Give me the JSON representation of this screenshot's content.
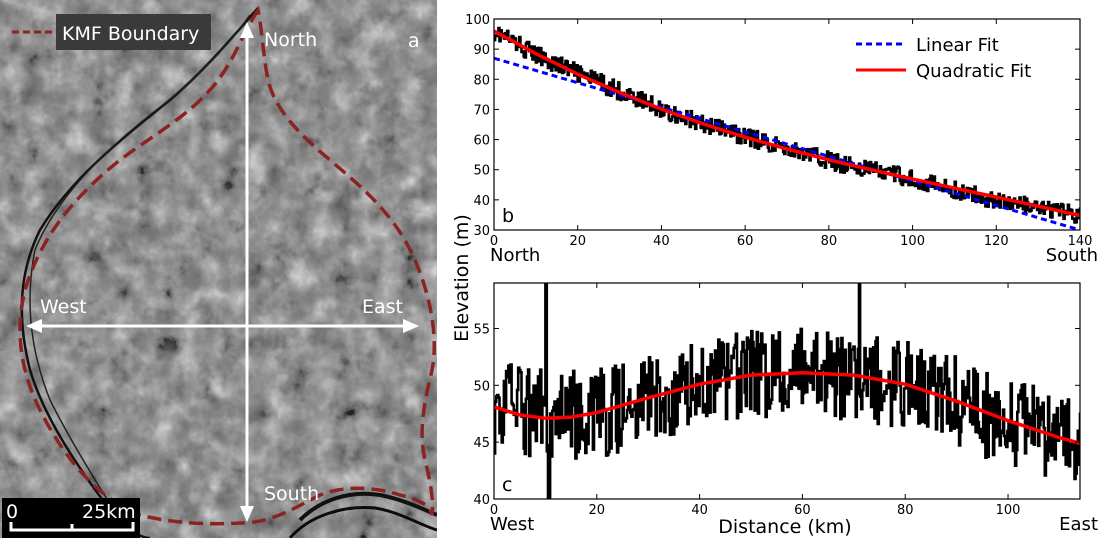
{
  "map": {
    "panel_label": "a",
    "legend_label": "KMF Boundary",
    "north_label": "North",
    "south_label": "South",
    "west_label": "West",
    "east_label": "East",
    "scale_start": "0",
    "scale_end": "25km",
    "colors": {
      "boundary": "#8b2323",
      "arrows": "#ffffff"
    }
  },
  "chart_data": [
    {
      "type": "line",
      "panel_label": "b",
      "xlim": [
        0,
        140
      ],
      "ylim": [
        30,
        100
      ],
      "xticks": [
        0,
        20,
        40,
        60,
        80,
        100,
        120,
        140
      ],
      "yticks": [
        30,
        40,
        50,
        60,
        70,
        80,
        90,
        100
      ],
      "x_start_label": "North",
      "x_end_label": "South",
      "legend_placement": "top-right",
      "series": [
        {
          "name": "Linear Fit",
          "color": "#0000ff",
          "style": "dashed",
          "x": [
            0,
            140
          ],
          "y": [
            87,
            30
          ]
        },
        {
          "name": "Quadratic Fit",
          "color": "#ff0000",
          "style": "solid",
          "x": [
            0,
            10,
            20,
            30,
            40,
            50,
            60,
            70,
            80,
            90,
            100,
            110,
            120,
            130,
            140
          ],
          "y": [
            96,
            88.5,
            81.7,
            75.6,
            70.1,
            65.2,
            60.8,
            56.9,
            53.3,
            50.0,
            46.9,
            43.9,
            40.9,
            37.9,
            34.8
          ]
        },
        {
          "name": "Elevation profile",
          "color": "#000000",
          "style": "noisy",
          "x": [
            0,
            10,
            20,
            30,
            40,
            50,
            60,
            70,
            80,
            90,
            100,
            110,
            120,
            130,
            140
          ],
          "y": [
            96,
            88,
            82,
            76,
            70,
            65,
            61,
            57,
            53,
            50,
            47,
            43,
            40,
            37,
            35
          ],
          "noise_amplitude": 3
        }
      ]
    },
    {
      "type": "line",
      "panel_label": "c",
      "xlim": [
        0,
        114
      ],
      "ylim": [
        40,
        59
      ],
      "xticks": [
        0,
        20,
        40,
        60,
        80,
        100
      ],
      "yticks": [
        40,
        45,
        50,
        55
      ],
      "xlabel": "Distance (km)",
      "ylabel": "Elevation (m)",
      "x_start_label": "West",
      "x_end_label": "East",
      "series": [
        {
          "name": "Fit",
          "color": "#ff0000",
          "style": "solid",
          "x": [
            0,
            5,
            10,
            15,
            20,
            30,
            40,
            50,
            60,
            70,
            80,
            90,
            100,
            110,
            114
          ],
          "y": [
            48.1,
            47.4,
            47.1,
            47.2,
            47.6,
            48.9,
            50.1,
            50.9,
            51.1,
            50.9,
            50.1,
            48.6,
            46.9,
            45.4,
            44.9
          ]
        },
        {
          "name": "Elevation profile",
          "color": "#000000",
          "style": "noisy",
          "x": [
            0,
            10,
            20,
            30,
            40,
            50,
            60,
            70,
            80,
            90,
            100,
            110,
            114
          ],
          "y": [
            48,
            47.5,
            47.5,
            48.5,
            50,
            51,
            51,
            51,
            50,
            48.5,
            46.5,
            45.5,
            45
          ],
          "noise_amplitude": 4,
          "spikes": [
            [
              10,
              59
            ],
            [
              10.5,
              40
            ],
            [
              71,
              59
            ]
          ]
        }
      ]
    }
  ]
}
